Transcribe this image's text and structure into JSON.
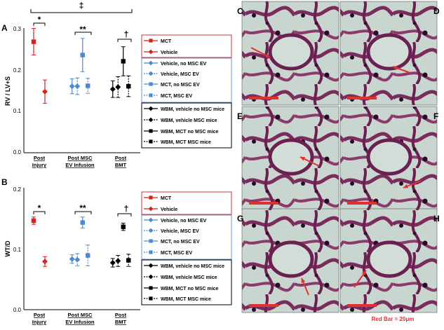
{
  "colors": {
    "mct_red": "#d82020",
    "vehicle_red": "#d82020",
    "msc_blue": "#4a8ad0",
    "wbm_black": "#000000",
    "legend_red_border": "#d83030",
    "legend_blue_border": "#6a9ad8",
    "legend_black_border": "#000000",
    "tissue_bg": "#c9d6d0",
    "tissue_purple": "#7a2c5c",
    "scale_bar": "#e03030"
  },
  "categories": [
    "Post Injury",
    "Post MSC EV Infusion",
    "Post BMT"
  ],
  "category_lines": [
    [
      "Post",
      "Injury"
    ],
    [
      "Post MSC",
      "EV Infusion"
    ],
    [
      "Post",
      "BMT"
    ]
  ],
  "legend": {
    "group1": [
      "MCT",
      "Vehicle"
    ],
    "group2": [
      "Vehicle, no MSC EV",
      "Vehicle, MSC EV",
      "MCT, no MSC EV",
      "MCT, MSC EV"
    ],
    "group3": [
      "WBM, vehicle no MSC mice",
      "WBM, vehicle MSC mice",
      "WBM, MCT no MSC mice",
      "WBM, MCT MSC mice"
    ]
  },
  "chart_data": [
    {
      "panel": "A",
      "type": "scatter",
      "ylabel": "RV / LV+S",
      "ylim": [
        0.0,
        0.3
      ],
      "yticks": [
        "0.0",
        "0.1",
        "0.2",
        "0.3"
      ],
      "categories": [
        "Post Injury",
        "Post MSC EV Infusion",
        "Post BMT"
      ],
      "series": [
        {
          "name": "MCT",
          "category": 0,
          "offset": 0,
          "marker": "square",
          "dashed": false,
          "color": "#d82020",
          "value": 0.267,
          "err": 0.032
        },
        {
          "name": "Vehicle",
          "category": 0,
          "offset": 1,
          "marker": "diamond",
          "dashed": false,
          "color": "#d82020",
          "value": 0.147,
          "err": 0.028
        },
        {
          "name": "Vehicle, no MSC EV",
          "category": 1,
          "offset": 0,
          "marker": "diamond",
          "dashed": false,
          "color": "#4a8ad0",
          "value": 0.16,
          "err": 0.018
        },
        {
          "name": "Vehicle, MSC EV",
          "category": 1,
          "offset": 1,
          "marker": "diamond",
          "dashed": true,
          "color": "#4a8ad0",
          "value": 0.16,
          "err": 0.02
        },
        {
          "name": "MCT, no MSC EV",
          "category": 1,
          "offset": 2,
          "marker": "square",
          "dashed": false,
          "color": "#4a8ad0",
          "value": 0.235,
          "err": 0.04
        },
        {
          "name": "MCT, MSC EV",
          "category": 1,
          "offset": 3,
          "marker": "square",
          "dashed": true,
          "color": "#4a8ad0",
          "value": 0.161,
          "err": 0.018
        },
        {
          "name": "WBM, vehicle no MSC mice",
          "category": 2,
          "offset": 0,
          "marker": "diamond",
          "dashed": false,
          "color": "#000000",
          "value": 0.153,
          "err": 0.02
        },
        {
          "name": "WBM, vehicle MSC mice",
          "category": 2,
          "offset": 1,
          "marker": "diamond",
          "dashed": true,
          "color": "#000000",
          "value": 0.158,
          "err": 0.025
        },
        {
          "name": "WBM, MCT no MSC mice",
          "category": 2,
          "offset": 2,
          "marker": "square",
          "dashed": false,
          "color": "#000000",
          "value": 0.22,
          "err": 0.035
        },
        {
          "name": "WBM, MCT MSC mice",
          "category": 2,
          "offset": 3,
          "marker": "square",
          "dashed": true,
          "color": "#000000",
          "value": 0.16,
          "err": 0.025
        }
      ],
      "annotations": {
        "cat0": "*",
        "cat1": "**",
        "cat2": "†",
        "top": "‡"
      }
    },
    {
      "panel": "B",
      "type": "scatter",
      "ylabel": "WT/D",
      "ylim": [
        0.0,
        0.2
      ],
      "yticks": [
        "0.0",
        "0.1",
        "0.2"
      ],
      "categories": [
        "Post Injury",
        "Post MSC EV Infusion",
        "Post BMT"
      ],
      "series": [
        {
          "name": "MCT",
          "category": 0,
          "offset": 0,
          "marker": "square",
          "dashed": false,
          "color": "#d82020",
          "value": 0.146,
          "err": 0.006
        },
        {
          "name": "Vehicle",
          "category": 0,
          "offset": 1,
          "marker": "diamond",
          "dashed": false,
          "color": "#d82020",
          "value": 0.079,
          "err": 0.008
        },
        {
          "name": "Vehicle, no MSC EV",
          "category": 1,
          "offset": 0,
          "marker": "diamond",
          "dashed": false,
          "color": "#4a8ad0",
          "value": 0.083,
          "err": 0.007
        },
        {
          "name": "Vehicle, MSC EV",
          "category": 1,
          "offset": 1,
          "marker": "diamond",
          "dashed": true,
          "color": "#4a8ad0",
          "value": 0.082,
          "err": 0.01
        },
        {
          "name": "MCT, no MSC EV",
          "category": 1,
          "offset": 2,
          "marker": "square",
          "dashed": false,
          "color": "#4a8ad0",
          "value": 0.143,
          "err": 0.009
        },
        {
          "name": "MCT, MSC EV",
          "category": 1,
          "offset": 3,
          "marker": "square",
          "dashed": true,
          "color": "#4a8ad0",
          "value": 0.089,
          "err": 0.017
        },
        {
          "name": "WBM, vehicle no MSC mice",
          "category": 2,
          "offset": 0,
          "marker": "diamond",
          "dashed": false,
          "color": "#000000",
          "value": 0.077,
          "err": 0.007
        },
        {
          "name": "WBM, vehicle MSC mice",
          "category": 2,
          "offset": 1,
          "marker": "diamond",
          "dashed": true,
          "color": "#000000",
          "value": 0.08,
          "err": 0.009
        },
        {
          "name": "WBM, MCT no MSC mice",
          "category": 2,
          "offset": 2,
          "marker": "square",
          "dashed": false,
          "color": "#000000",
          "value": 0.136,
          "err": 0.006
        },
        {
          "name": "WBM, MCT MSC mice",
          "category": 2,
          "offset": 3,
          "marker": "square",
          "dashed": true,
          "color": "#000000",
          "value": 0.081,
          "err": 0.01
        }
      ],
      "annotations": {
        "cat0": "*",
        "cat1": "**",
        "cat2": "†"
      }
    }
  ],
  "histology": {
    "panels": [
      "C",
      "D",
      "E",
      "F",
      "G",
      "H"
    ],
    "scale_note": "Red Bar = 20μm"
  }
}
